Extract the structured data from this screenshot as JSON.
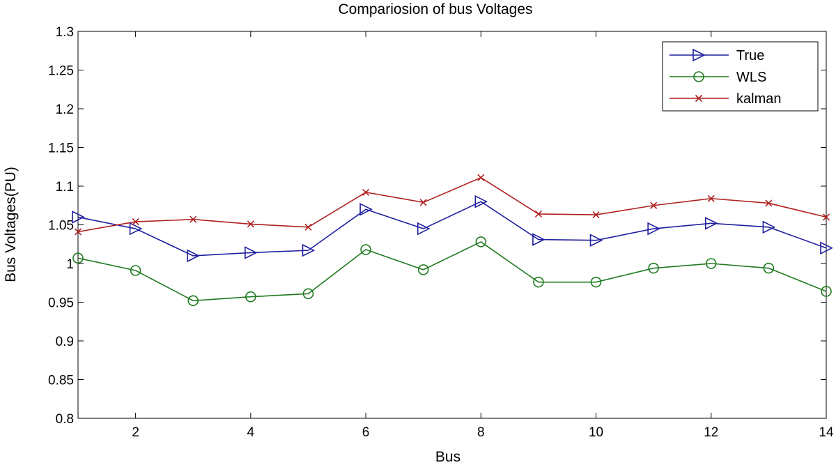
{
  "chart_data": {
    "type": "line",
    "title": "Compariosion of bus Voltages",
    "xlabel": "Bus",
    "ylabel": "Bus Voltages(PU)",
    "xlim": [
      1,
      14
    ],
    "ylim": [
      0.8,
      1.3
    ],
    "xticks": [
      2,
      4,
      6,
      8,
      10,
      12,
      14
    ],
    "yticks": [
      0.8,
      0.85,
      0.9,
      0.95,
      1,
      1.05,
      1.1,
      1.15,
      1.2,
      1.25,
      1.3
    ],
    "ytick_labels": [
      "0.8",
      "0.85",
      "0.9",
      "0.95",
      "1",
      "1.05",
      "1.1",
      "1.15",
      "1.2",
      "1.25",
      "1.3"
    ],
    "grid": false,
    "legend_position": "top-right",
    "x": [
      1,
      2,
      3,
      4,
      5,
      6,
      7,
      8,
      9,
      10,
      11,
      12,
      13,
      14
    ],
    "series": [
      {
        "name": "True",
        "color": "#1f1f9f",
        "marker": "triangle-right",
        "values": [
          1.06,
          1.045,
          1.01,
          1.014,
          1.017,
          1.07,
          1.045,
          1.08,
          1.031,
          1.03,
          1.045,
          1.052,
          1.047,
          1.02
        ]
      },
      {
        "name": "WLS",
        "color": "#1f7a1f",
        "marker": "circle",
        "values": [
          1.007,
          0.991,
          0.952,
          0.957,
          0.961,
          1.018,
          0.992,
          1.028,
          0.976,
          0.976,
          0.994,
          1.0,
          0.994,
          0.964
        ]
      },
      {
        "name": "kalman",
        "color": "#b02020",
        "marker": "x",
        "values": [
          1.041,
          1.054,
          1.057,
          1.051,
          1.047,
          1.092,
          1.079,
          1.111,
          1.064,
          1.063,
          1.075,
          1.084,
          1.078,
          1.06
        ]
      }
    ]
  }
}
